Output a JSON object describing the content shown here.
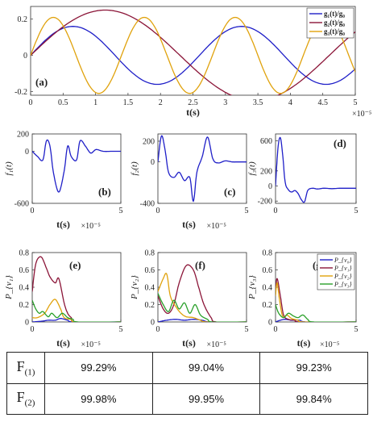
{
  "chart_data": [
    {
      "id": "top",
      "type": "line",
      "panel_label": "(a)",
      "xlabel": "t(s)",
      "x_exponent": "×10⁻⁵",
      "xlim": [
        0,
        5
      ],
      "ylim": [
        -0.22,
        0.27
      ],
      "xticks": [
        "0",
        "0.5",
        "1",
        "1.5",
        "2",
        "2.5",
        "3",
        "3.5",
        "4",
        "4.5",
        "5"
      ],
      "yticks": [
        "-0.2",
        "0",
        "0.2"
      ],
      "legend": "top-right",
      "series": [
        {
          "name": "g₁(t)/g₀",
          "color": "#1f1fc8",
          "amp": 0.16,
          "period": 2.6,
          "samples": "sin"
        },
        {
          "name": "g₂(t)/g₀",
          "color": "#8b1538",
          "amp": [
            0.25,
            0.27
          ],
          "period": 4.6,
          "samples": "sin"
        },
        {
          "name": "g₃(t)/g₀",
          "color": "#e0a20c",
          "amp": 0.21,
          "period": 1.4,
          "samples": "sin"
        }
      ]
    },
    {
      "id": "b",
      "type": "line",
      "panel_label": "(b)",
      "ylabel": "f₁(t)",
      "xlabel": "t(s)",
      "x_exponent": "×10⁻⁵",
      "xlim": [
        0,
        5
      ],
      "ylim": [
        -600,
        200
      ],
      "xticks": [
        "0",
        "5"
      ],
      "yticks": [
        "200",
        "0",
        "-600"
      ],
      "series": [
        {
          "color": "#1f1fc8",
          "x": [
            0,
            0.3,
            0.6,
            0.8,
            1.0,
            1.2,
            1.5,
            1.8,
            2.0,
            2.2,
            2.5,
            2.7,
            3.0,
            3.3,
            3.6,
            4.0,
            4.5,
            5.0
          ],
          "y": [
            0,
            -60,
            -100,
            120,
            60,
            -250,
            -470,
            -230,
            60,
            -60,
            -100,
            120,
            60,
            -20,
            20,
            0,
            0,
            0
          ]
        }
      ]
    },
    {
      "id": "c",
      "type": "line",
      "panel_label": "(c)",
      "ylabel": "f₂(t)",
      "xlabel": "t(s)",
      "x_exponent": "×10⁻⁵",
      "xlim": [
        0,
        5
      ],
      "ylim": [
        -400,
        270
      ],
      "xticks": [
        "0",
        "5"
      ],
      "yticks": [
        "200",
        "0",
        "-400"
      ],
      "series": [
        {
          "color": "#1f1fc8",
          "x": [
            0,
            0.2,
            0.4,
            0.6,
            0.9,
            1.2,
            1.5,
            1.8,
            2.0,
            2.2,
            2.5,
            2.8,
            3.1,
            3.4,
            3.8,
            4.2,
            4.6,
            5.0
          ],
          "y": [
            0,
            250,
            120,
            -100,
            -150,
            -100,
            -180,
            -150,
            -380,
            -100,
            50,
            240,
            30,
            -10,
            10,
            0,
            0,
            0
          ]
        }
      ]
    },
    {
      "id": "d",
      "type": "line",
      "panel_label": "(d)",
      "ylabel": "f₃(t)",
      "xlim": [
        0,
        5
      ],
      "ylim": [
        -230,
        690
      ],
      "xticks": [
        "0",
        "5"
      ],
      "yticks": [
        "600",
        "200",
        "0",
        "-200"
      ],
      "series": [
        {
          "color": "#1f1fc8",
          "x": [
            0,
            0.15,
            0.3,
            0.45,
            0.6,
            0.8,
            1.0,
            1.2,
            1.4,
            1.6,
            1.8,
            2.0,
            2.3,
            2.6,
            3.0,
            3.5,
            4.0,
            4.5,
            5.0
          ],
          "y": [
            0,
            500,
            640,
            400,
            50,
            -50,
            -80,
            -60,
            -100,
            -180,
            -210,
            -60,
            -30,
            -40,
            -30,
            -35,
            -30,
            -30,
            -30
          ]
        }
      ]
    },
    {
      "id": "e",
      "type": "line",
      "panel_label": "(e)",
      "ylabel": "P_{v₁}",
      "xlabel": "t(s)",
      "x_exponent": "×10⁻⁵",
      "xlim": [
        0,
        5
      ],
      "ylim": [
        0,
        0.8
      ],
      "xticks": [
        "0",
        "5"
      ],
      "yticks": [
        "0.8",
        "0.6",
        "0.4",
        "0.2",
        "0"
      ],
      "series": [
        {
          "color": "#1f1fc8",
          "x": [
            0,
            0.6,
            0.9,
            1.3,
            1.6,
            2.0,
            2.4,
            5
          ],
          "y": [
            0,
            0.01,
            0.02,
            0.02,
            0.04,
            0.02,
            0,
            0
          ]
        },
        {
          "color": "#8b1538",
          "x": [
            0,
            0.2,
            0.5,
            0.8,
            1.0,
            1.3,
            1.5,
            1.8,
            2.0,
            2.2,
            2.5,
            5
          ],
          "y": [
            0.35,
            0.67,
            0.75,
            0.62,
            0.52,
            0.45,
            0.5,
            0.22,
            0.1,
            0.05,
            0,
            0
          ]
        },
        {
          "color": "#e0a20c",
          "x": [
            0,
            0.3,
            0.7,
            1.0,
            1.3,
            1.6,
            1.8,
            2.2,
            2.5,
            5
          ],
          "y": [
            0.05,
            0.05,
            0.1,
            0.2,
            0.26,
            0.15,
            0.05,
            0.03,
            0,
            0
          ]
        },
        {
          "color": "#2aa02a",
          "x": [
            0,
            0.2,
            0.4,
            0.6,
            0.9,
            1.1,
            1.4,
            1.7,
            2.0,
            2.3,
            2.6,
            5
          ],
          "y": [
            0.25,
            0.15,
            0.1,
            0.12,
            0.06,
            0.1,
            0.05,
            0.1,
            0.05,
            0.03,
            0,
            0
          ]
        }
      ]
    },
    {
      "id": "f",
      "type": "line",
      "panel_label": "(f)",
      "ylabel": "P_{v₂}",
      "xlabel": "t(s)",
      "x_exponent": "×10⁻⁵",
      "xlim": [
        0,
        5
      ],
      "ylim": [
        0,
        0.8
      ],
      "xticks": [
        "0",
        "5"
      ],
      "yticks": [
        "0.8",
        "0.6",
        "0.4",
        "0.2",
        "0"
      ],
      "series": [
        {
          "color": "#1f1fc8",
          "x": [
            0,
            0.5,
            1.0,
            1.5,
            2.0,
            2.5,
            3.0,
            5
          ],
          "y": [
            0,
            0.02,
            0.03,
            0.02,
            0.03,
            0.02,
            0,
            0
          ]
        },
        {
          "color": "#8b1538",
          "x": [
            0,
            0.3,
            0.6,
            0.9,
            1.2,
            1.6,
            2.0,
            2.3,
            2.6,
            3.0,
            3.3,
            5
          ],
          "y": [
            0.3,
            0.15,
            0.1,
            0.2,
            0.45,
            0.65,
            0.6,
            0.4,
            0.2,
            0.05,
            0,
            0
          ]
        },
        {
          "color": "#e0a20c",
          "x": [
            0,
            0.3,
            0.5,
            0.7,
            1.0,
            1.3,
            1.6,
            2.0,
            2.4,
            2.8,
            5
          ],
          "y": [
            0.35,
            0.5,
            0.55,
            0.3,
            0.18,
            0.1,
            0.06,
            0.05,
            0.02,
            0,
            0
          ]
        },
        {
          "color": "#2aa02a",
          "x": [
            0,
            0.3,
            0.6,
            0.9,
            1.2,
            1.5,
            1.8,
            2.1,
            2.4,
            2.8,
            3.1,
            5
          ],
          "y": [
            0.33,
            0.2,
            0.12,
            0.25,
            0.15,
            0.22,
            0.1,
            0.2,
            0.08,
            0.03,
            0,
            0
          ]
        }
      ]
    },
    {
      "id": "g",
      "type": "line",
      "panel_label": "(g)",
      "ylabel": "P_{v₃}",
      "xlabel": "t(s)",
      "x_exponent": "×10⁻⁵",
      "xlim": [
        0,
        5
      ],
      "ylim": [
        0,
        0.8
      ],
      "xticks": [
        "0",
        "5"
      ],
      "yticks": [
        "0.8",
        "0.6",
        "0.4",
        "0.2",
        "0"
      ],
      "legend": "top-right",
      "series": [
        {
          "name": "P_{v₀}",
          "color": "#1f1fc8",
          "x": [
            0,
            0.3,
            0.6,
            1.0,
            1.5,
            2.0,
            5
          ],
          "y": [
            0,
            0.02,
            0.03,
            0.02,
            0.02,
            0,
            0
          ]
        },
        {
          "name": "P_{v₁}",
          "color": "#8b1538",
          "x": [
            0,
            0.1,
            0.3,
            0.5,
            0.8,
            1.2,
            1.6,
            5
          ],
          "y": [
            0.35,
            0.5,
            0.3,
            0.08,
            0.03,
            0.02,
            0,
            0
          ]
        },
        {
          "name": "P_{v₂}",
          "color": "#e0a20c",
          "x": [
            0,
            0.1,
            0.25,
            0.45,
            0.7,
            1.0,
            1.4,
            1.8,
            5
          ],
          "y": [
            0.3,
            0.45,
            0.25,
            0.06,
            0.08,
            0.04,
            0.02,
            0,
            0
          ]
        },
        {
          "name": "P_{v₃}",
          "color": "#2aa02a",
          "x": [
            0,
            0.2,
            0.5,
            0.8,
            1.1,
            1.4,
            1.7,
            2.0,
            2.4,
            5
          ],
          "y": [
            0.2,
            0.1,
            0.05,
            0.1,
            0.07,
            0.05,
            0.08,
            0.03,
            0,
            0
          ]
        }
      ]
    }
  ],
  "table": {
    "rows": [
      {
        "label": "F",
        "sub": "(1)",
        "values": [
          "99.29%",
          "99.04%",
          "99.23%"
        ]
      },
      {
        "label": "F",
        "sub": "(2)",
        "values": [
          "99.98%",
          "99.95%",
          "99.84%"
        ]
      }
    ]
  }
}
